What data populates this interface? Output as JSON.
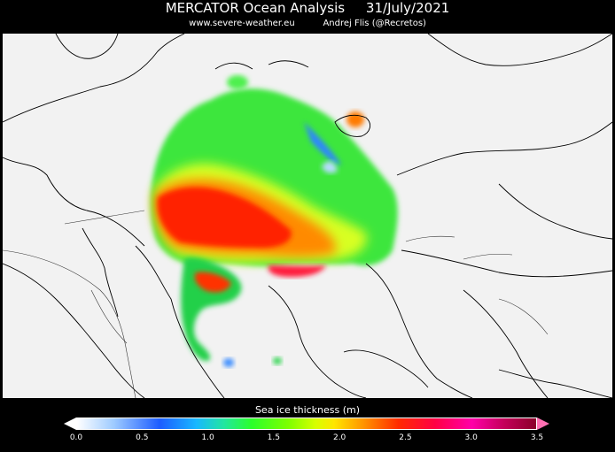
{
  "header": {
    "title": "MERCATOR Ocean Analysis     31/July/2021",
    "subtitle": "www.severe-weather.eu          Andrej Flis (@Recretos)"
  },
  "colorbar": {
    "title": "Sea ice thickness (m)",
    "ticks": [
      "0.0",
      "0.5",
      "1.0",
      "1.5",
      "2.0",
      "2.5",
      "3.0",
      "3.5"
    ],
    "min": 0.0,
    "max": 3.5
  },
  "colors": {
    "background": "#000000",
    "land": "#f2f2f2",
    "coast": "#000000"
  }
}
